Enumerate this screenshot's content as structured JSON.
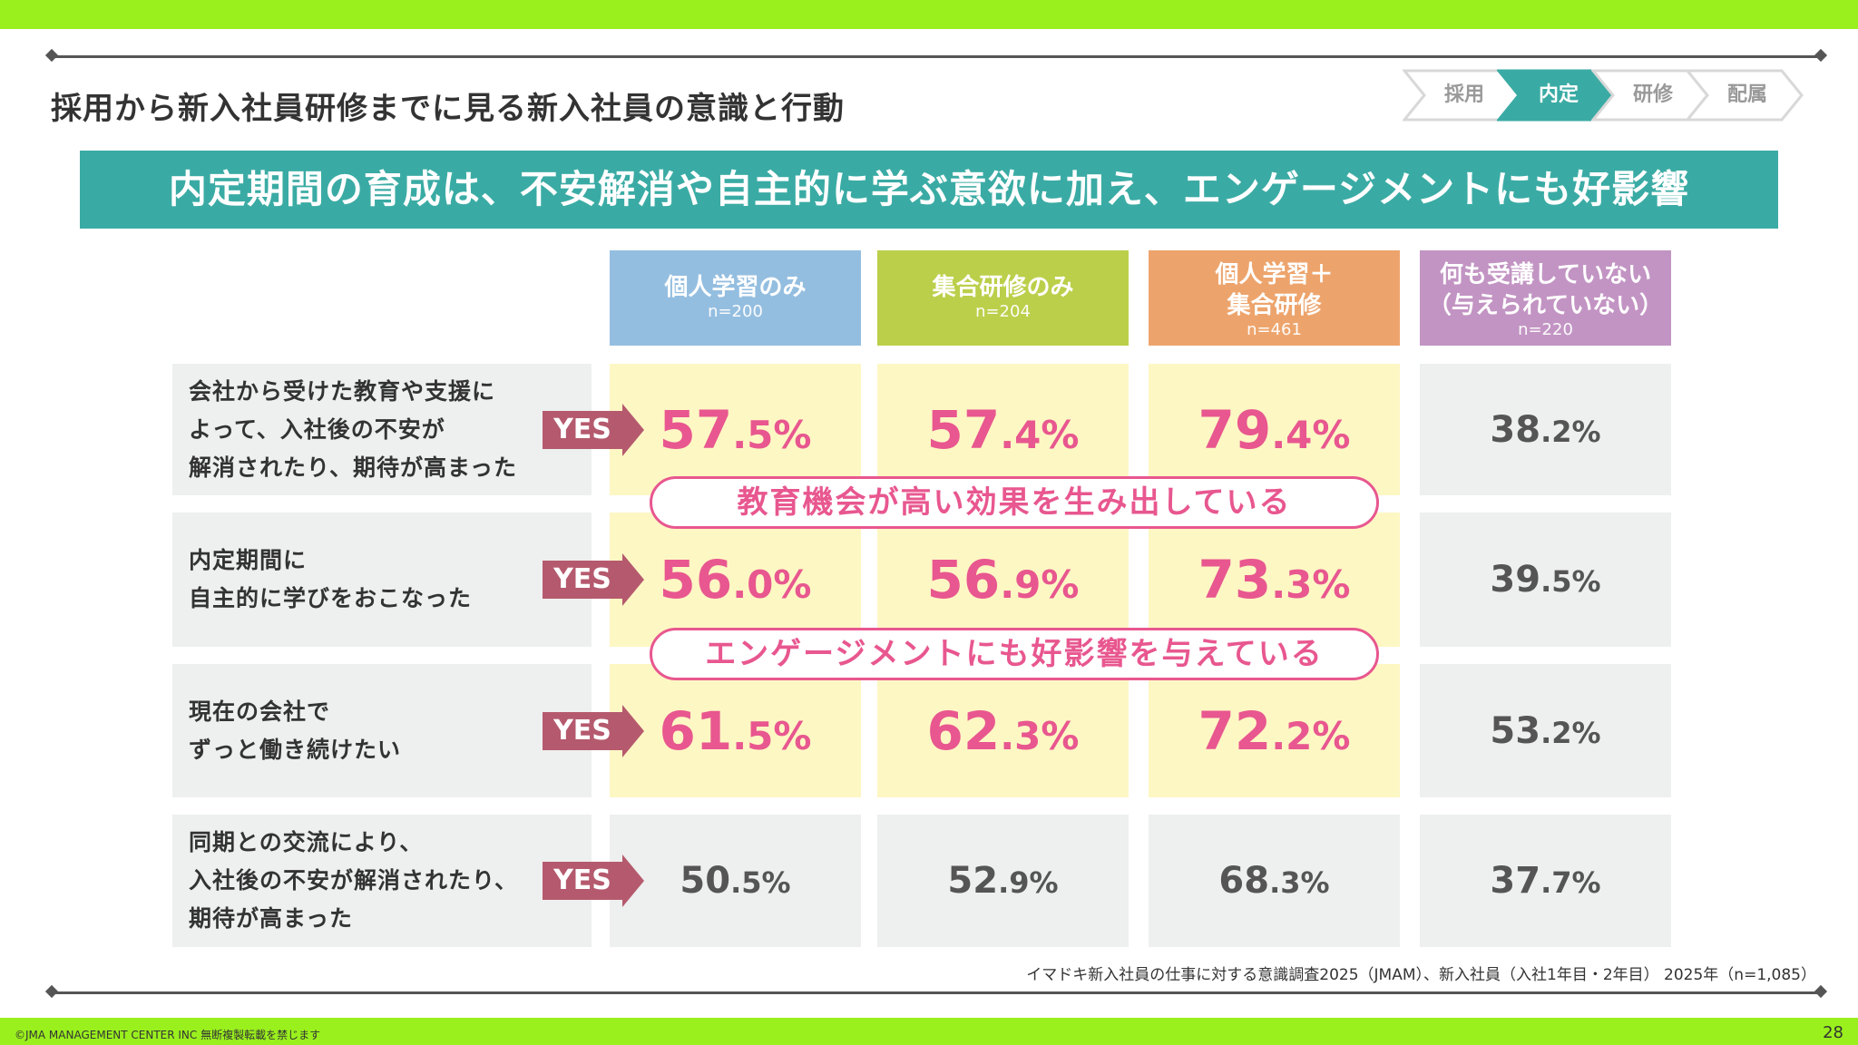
{
  "page_title": "採用から新入社員研修までに見る新入社員の意識と行動",
  "steps": [
    {
      "label": "採用",
      "active": false
    },
    {
      "label": "内定",
      "active": true
    },
    {
      "label": "研修",
      "active": false
    },
    {
      "label": "配属",
      "active": false
    }
  ],
  "banner": "内定期間の育成は、不安解消や自主的に学ぶ意欲に加え、エンゲージメントにも好影響",
  "colors": {
    "accent_green": "#9af01d",
    "banner_teal": "#3aaba4",
    "highlight_pink": "#e8578f",
    "yes_arrow": "#b55a6e",
    "highlight_bg": "#fdf7c4",
    "cell_gray": "#eeefef"
  },
  "chart_data": {
    "type": "table",
    "columns": [
      {
        "label": "個人学習のみ",
        "n": "n=200",
        "color": "#94bee0"
      },
      {
        "label": "集合研修のみ",
        "n": "n=204",
        "color": "#bccf4a"
      },
      {
        "label": "個人学習＋\n集合研修",
        "n": "n=461",
        "color": "#eda46c"
      },
      {
        "label": "何も受講していない\n（与えられていない）",
        "n": "n=220",
        "color": "#c294c3"
      }
    ],
    "yes_label": "YES",
    "rows": [
      {
        "label": "会社から受けた教育や支援に\nよって、入社後の不安が\n解消されたり、期待が高まった",
        "values": [
          57.5,
          57.4,
          79.4,
          38.2
        ],
        "highlighted": [
          true,
          true,
          true,
          false
        ]
      },
      {
        "label": "内定期間に\n自主的に学びをおこなった",
        "values": [
          56.0,
          56.9,
          73.3,
          39.5
        ],
        "highlighted": [
          true,
          true,
          true,
          false
        ]
      },
      {
        "label": "現在の会社で\nずっと働き続けたい",
        "values": [
          61.5,
          62.3,
          72.2,
          53.2
        ],
        "highlighted": [
          true,
          true,
          true,
          false
        ]
      },
      {
        "label": "同期との交流により、\n入社後の不安が解消されたり、\n期待が高まった",
        "values": [
          50.5,
          52.9,
          68.3,
          37.7
        ],
        "highlighted": [
          false,
          false,
          false,
          false
        ]
      }
    ],
    "unit": "%",
    "annotations": [
      "教育機会が高い効果を生み出している",
      "エンゲージメントにも好影響を与えている"
    ]
  },
  "source": "イマドキ新入社員の仕事に対する意識調査2025（JMAM）、新入社員（入社1年目・2年目） 2025年（n=1,085）",
  "copyright": "©JMA MANAGEMENT CENTER INC 無断複製転載を禁じます",
  "page_number": "28"
}
